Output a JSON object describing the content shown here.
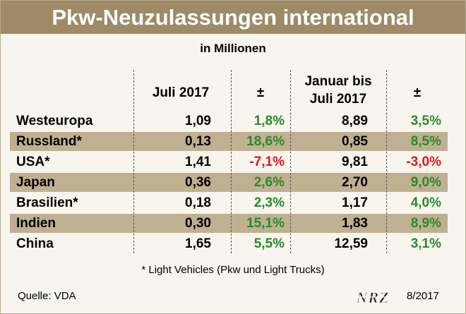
{
  "title": "Pkw-Neuzulassungen international",
  "unit_label": "in Millionen",
  "logo_text": "NRZ",
  "footnote": "* Light Vehicles (Pkw und Light Trucks)",
  "source": "Quelle: VDA",
  "date": "8/2017",
  "colors": {
    "header_bg": "#9e8a66",
    "band": "#bfb092",
    "positive": "#2a8a2a",
    "negative": "#e01818"
  },
  "chart_data": {
    "type": "table",
    "columns": [
      "Juli 2017",
      "±",
      "Januar bis\nJuli 2017",
      "±"
    ],
    "rows": [
      {
        "label": "Westeuropa",
        "v1": "1,09",
        "c1": "1,8%",
        "v2": "8,89",
        "c2": "3,5%"
      },
      {
        "label": "Russland*",
        "v1": "0,13",
        "c1": "18,6%",
        "v2": "0,85",
        "c2": "8,5%"
      },
      {
        "label": "USA*",
        "v1": "1,41",
        "c1": "-7,1%",
        "v2": "9,81",
        "c2": "-3,0%"
      },
      {
        "label": "Japan",
        "v1": "0,36",
        "c1": "2,6%",
        "v2": "2,70",
        "c2": "9,0%"
      },
      {
        "label": "Brasilien*",
        "v1": "0,18",
        "c1": "2,3%",
        "v2": "1,17",
        "c2": "4,0%"
      },
      {
        "label": "Indien",
        "v1": "0,30",
        "c1": "15,1%",
        "v2": "1,83",
        "c2": "8,9%"
      },
      {
        "label": "China",
        "v1": "1,65",
        "c1": "5,5%",
        "v2": "12,59",
        "c2": "3,1%"
      }
    ]
  }
}
